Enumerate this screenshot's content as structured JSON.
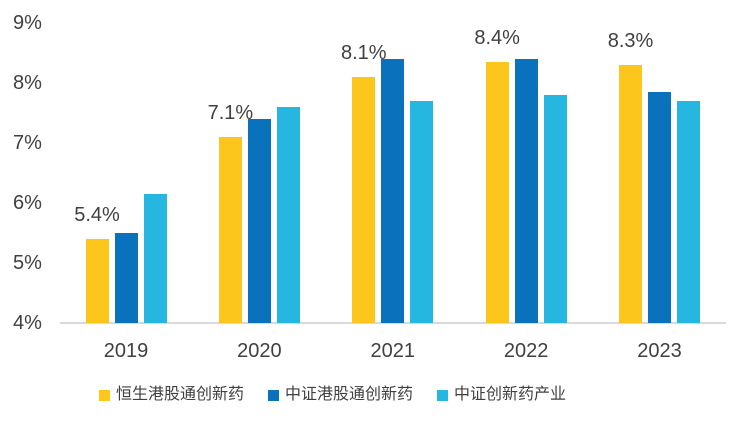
{
  "page": {
    "background": "#FFFFFF"
  },
  "chart_data": {
    "type": "bar",
    "title": "",
    "xlabel": "",
    "ylabel": "",
    "categories": [
      "2019",
      "2020",
      "2021",
      "2022",
      "2023"
    ],
    "series": [
      {
        "name": "恒生港股通创新药",
        "color": "#FCC61D",
        "values": [
          5.4,
          7.1,
          8.1,
          8.35,
          8.3
        ],
        "data_labels": [
          "5.4%",
          "7.1%",
          "8.1%",
          "8.4%",
          "8.3%"
        ]
      },
      {
        "name": "中证港股通创新药",
        "color": "#0A71BD",
        "values": [
          5.5,
          7.4,
          8.4,
          8.4,
          7.85
        ]
      },
      {
        "name": "中证创新药产业",
        "color": "#25B7E0",
        "values": [
          6.15,
          7.6,
          7.7,
          7.8,
          7.7
        ]
      }
    ],
    "ylim": [
      4,
      9
    ],
    "y_ticks": [
      {
        "value": 9,
        "label": "9%"
      },
      {
        "value": 8,
        "label": "8%"
      },
      {
        "value": 7,
        "label": "7%"
      },
      {
        "value": 6,
        "label": "6%"
      },
      {
        "value": 5,
        "label": "5%"
      },
      {
        "value": 4,
        "label": "4%"
      }
    ],
    "grid": false,
    "legend_position": "bottom",
    "data_labels_on_series": "恒生港股通创新药"
  },
  "colors": {
    "axis_line": "#D9D9D9",
    "tick_text": "#404040",
    "value_label_text": "#404040",
    "legend_text": "#404040"
  }
}
